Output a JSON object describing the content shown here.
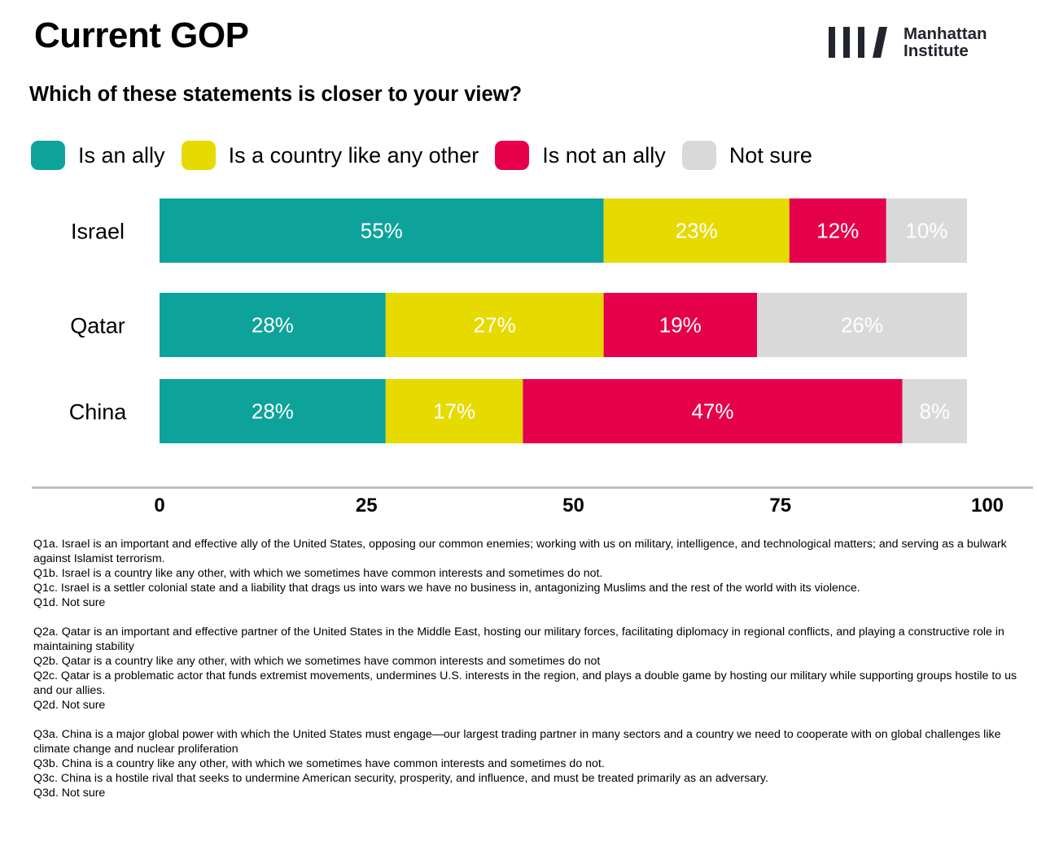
{
  "header": {
    "title": "Current GOP",
    "subtitle": "Which of these statements is closer to your view?",
    "logo": {
      "icon": "manhattan-institute-bars-icon",
      "line1": "Manhattan",
      "line2": "Institute",
      "color": "#22242e"
    }
  },
  "chart_data": {
    "type": "bar",
    "orientation": "horizontal",
    "stacked": true,
    "title": "Which of these statements is closer to your view?",
    "xlabel": "",
    "ylabel": "",
    "xlim": [
      0,
      100
    ],
    "x_ticks": [
      "0",
      "25",
      "50",
      "75",
      "100"
    ],
    "grid": false,
    "legend_position": "top",
    "categories": [
      "Israel",
      "Qatar",
      "China"
    ],
    "series": [
      {
        "name": "Is an ally",
        "color": "#0ea39a",
        "label_color": "#ffffff",
        "values": [
          55,
          28,
          28
        ]
      },
      {
        "name": "Is a country like any other",
        "color": "#e6da00",
        "label_color": "#ffffff",
        "values": [
          23,
          27,
          17
        ]
      },
      {
        "name": "Is not an ally",
        "color": "#e5004b",
        "label_color": "#ffffff",
        "values": [
          12,
          19,
          47
        ]
      },
      {
        "name": "Not sure",
        "color": "#d9d9d9",
        "label_color": "#ffffff",
        "values": [
          10,
          26,
          8
        ]
      }
    ],
    "data_labels": [
      [
        "55%",
        "23%",
        "12%",
        "10%"
      ],
      [
        "28%",
        "27%",
        "19%",
        "26%"
      ],
      [
        "28%",
        "17%",
        "47%",
        "8%"
      ]
    ]
  },
  "footnotes": [
    [
      "Q1a. Israel is an important and effective ally of the United States, opposing our common enemies; working with us on military, intelligence, and technological matters; and serving as a bulwark against Islamist terrorism.",
      "Q1b. Israel is a country like any other,  with which we sometimes have common interests and sometimes do not.",
      "Q1c. Israel is a settler colonial state and a liability that drags us into wars we have no business in, antagonizing Muslims and the rest of the world with its violence.",
      "Q1d. Not sure"
    ],
    [
      "Q2a. Qatar is an important and effective partner of the United States in the Middle East, hosting our military forces, facilitating diplomacy in regional conflicts, and playing a constructive role in maintaining stability",
      "Q2b. Qatar is a country like any other, with which we sometimes have common interests and sometimes do not",
      "Q2c. Qatar is a problematic actor that funds extremist movements, undermines U.S. interests in the region, and plays a double game by hosting our military while supporting groups hostile to us and our allies.",
      "Q2d. Not sure"
    ],
    [
      "Q3a. China is a major global power with which the United States must engage—our largest trading partner in many sectors and a country we need to cooperate with on global challenges like climate change and nuclear proliferation",
      "Q3b. China is a country like any other, with which we sometimes have common interests and sometimes do not.",
      "Q3c. China is a hostile rival that seeks to undermine American security, prosperity, and influence, and must be treated primarily as an adversary.",
      "Q3d. Not sure"
    ]
  ]
}
